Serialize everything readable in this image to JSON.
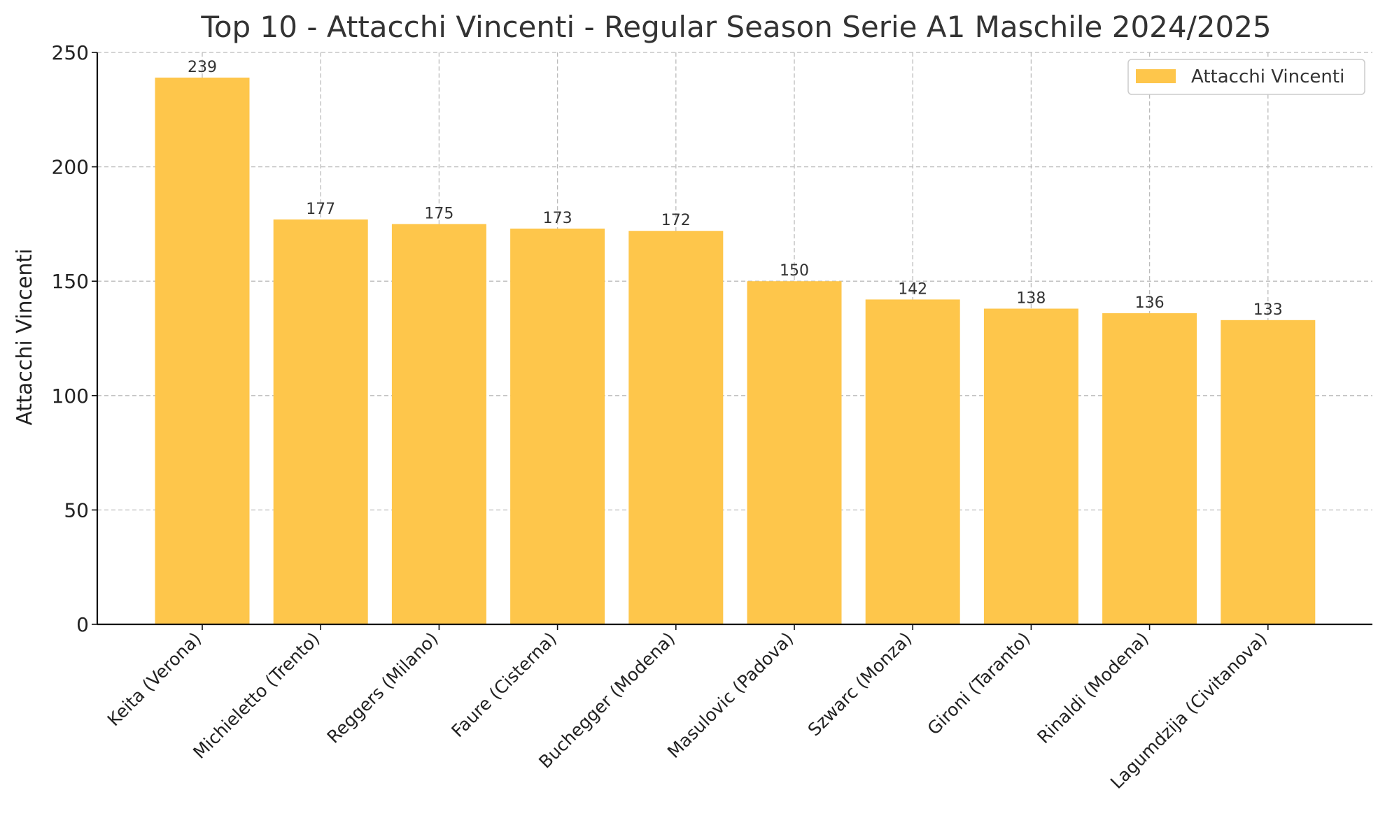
{
  "chart_data": {
    "type": "bar",
    "title": "Top 10 - Attacchi Vincenti - Regular Season Serie A1 Maschile 2024/2025",
    "xlabel": "",
    "ylabel": "Attacchi Vincenti",
    "categories": [
      "Keita (Verona)",
      "Michieletto (Trento)",
      "Reggers (Milano)",
      "Faure (Cisterna)",
      "Buchegger (Modena)",
      "Masulovic (Padova)",
      "Szwarc (Monza)",
      "Gironi (Taranto)",
      "Rinaldi (Modena)",
      "Lagumdzija (Civitanova)"
    ],
    "series": [
      {
        "name": "Attacchi Vincenti",
        "values": [
          239,
          177,
          175,
          173,
          172,
          150,
          142,
          138,
          136,
          133
        ],
        "color": "#FEC64B"
      }
    ],
    "ylim": [
      0,
      250
    ],
    "yticks": [
      0,
      50,
      100,
      150,
      200,
      250
    ],
    "grid": true,
    "legend": "top-right",
    "data_labels": true
  }
}
